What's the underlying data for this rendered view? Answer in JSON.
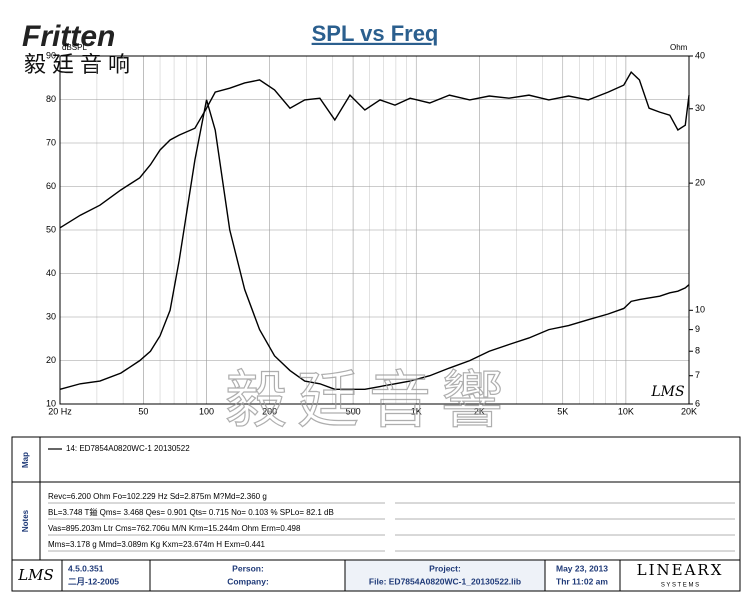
{
  "brand": "Fritten",
  "brand_cn": "毅廷音响",
  "watermark": "毅廷音響",
  "plot_mark": "LMS",
  "chart_data": {
    "type": "line",
    "title": "SPL vs Freq",
    "y_label": "dBSPL",
    "y2_label": "Ohm",
    "x": [
      20,
      25,
      31,
      39,
      48,
      54,
      60,
      67,
      74,
      88,
      100,
      110,
      129,
      152,
      179,
      211,
      250,
      294,
      347,
      409,
      483,
      569,
      672,
      792,
      935,
      1160,
      1440,
      1800,
      2230,
      2770,
      3450,
      4290,
      5330,
      6620,
      8230,
      9770,
      10600,
      11600,
      12900,
      14500,
      16200,
      17700,
      19200,
      20000
    ],
    "series": [
      {
        "color": "#000000",
        "values": [
          50.5,
          53.4,
          55.7,
          59.2,
          62,
          65,
          68.4,
          70.7,
          71.8,
          73.4,
          78,
          81.7,
          82.6,
          83.8,
          84.5,
          82.2,
          78,
          79.9,
          80.3,
          75.3,
          81,
          77.6,
          79.9,
          78.7,
          80.3,
          79.2,
          81,
          79.9,
          80.8,
          80.3,
          81,
          79.9,
          80.8,
          79.9,
          81.7,
          83.3,
          86.3,
          84.5,
          78,
          77.1,
          76.4,
          73,
          74.1,
          81
        ]
      },
      {
        "color": "#000000",
        "axis": "y2",
        "values": [
          6.5,
          6.7,
          6.8,
          7.1,
          7.6,
          8.0,
          8.7,
          10.0,
          13.1,
          22.7,
          31.5,
          26.7,
          15.5,
          11.2,
          9.0,
          7.8,
          7.2,
          6.8,
          6.7,
          6.5,
          6.5,
          6.5,
          6.6,
          6.7,
          6.8,
          7.0,
          7.3,
          7.6,
          8.0,
          8.3,
          8.6,
          9.0,
          9.2,
          9.5,
          9.8,
          10.1,
          10.5,
          10.6,
          10.7,
          10.8,
          11.0,
          11.1,
          11.3,
          11.5
        ]
      }
    ],
    "xscale": "log",
    "xlim": [
      20,
      20000
    ],
    "xticks": [
      {
        "value": 20,
        "label": "20 Hz"
      },
      50,
      100,
      200,
      500,
      {
        "value": 1000,
        "label": "1K"
      },
      {
        "value": 2000,
        "label": "2K"
      },
      {
        "value": 5000,
        "label": "5K"
      },
      {
        "value": 10000,
        "label": "10K"
      },
      {
        "value": 20000,
        "label": "20K"
      }
    ],
    "ylim": [
      10,
      90
    ],
    "yticks": [
      10,
      20,
      30,
      40,
      50,
      60,
      70,
      80,
      90
    ],
    "y2scale": "log",
    "y2lim": [
      6,
      40
    ],
    "y2ticks": [
      6,
      7,
      8,
      9,
      10,
      20,
      30,
      40
    ],
    "grid": true
  },
  "map": {
    "label": "Map",
    "legend": "14: ED7854A0820WC-1  20130522"
  },
  "notes": {
    "label": "Notes",
    "lines": [
      "Revc=6.200 Ohm  Fo=102.229 Hz  Sd=2.875m M?Md=2.360 g",
      "BL=3.748 T鎰  Qms= 3.468  Qes= 0.901  Qts= 0.715  No= 0.103 %  SPLo= 82.1 dB",
      "Vas=895.203m Ltr  Cms=762.706u M/N  Krm=15.244m Ohm  Erm=0.498",
      "Mms=3.178 g  Mmd=3.089m Kg  Kxm=23.674m H  Exm=0.441"
    ]
  },
  "footer": {
    "logo": "LMS",
    "version": "4.5.0.351",
    "build_date": "二月-12-2005",
    "person": "Person:",
    "company": "Company:",
    "project": "Project:",
    "file": "File: ED7854A0820WC-1_20130522.lib",
    "date": "May 23, 2013",
    "time": "Thr 11:02 am",
    "maker": "LINEARX",
    "maker_sub": "S Y S T E M S"
  }
}
